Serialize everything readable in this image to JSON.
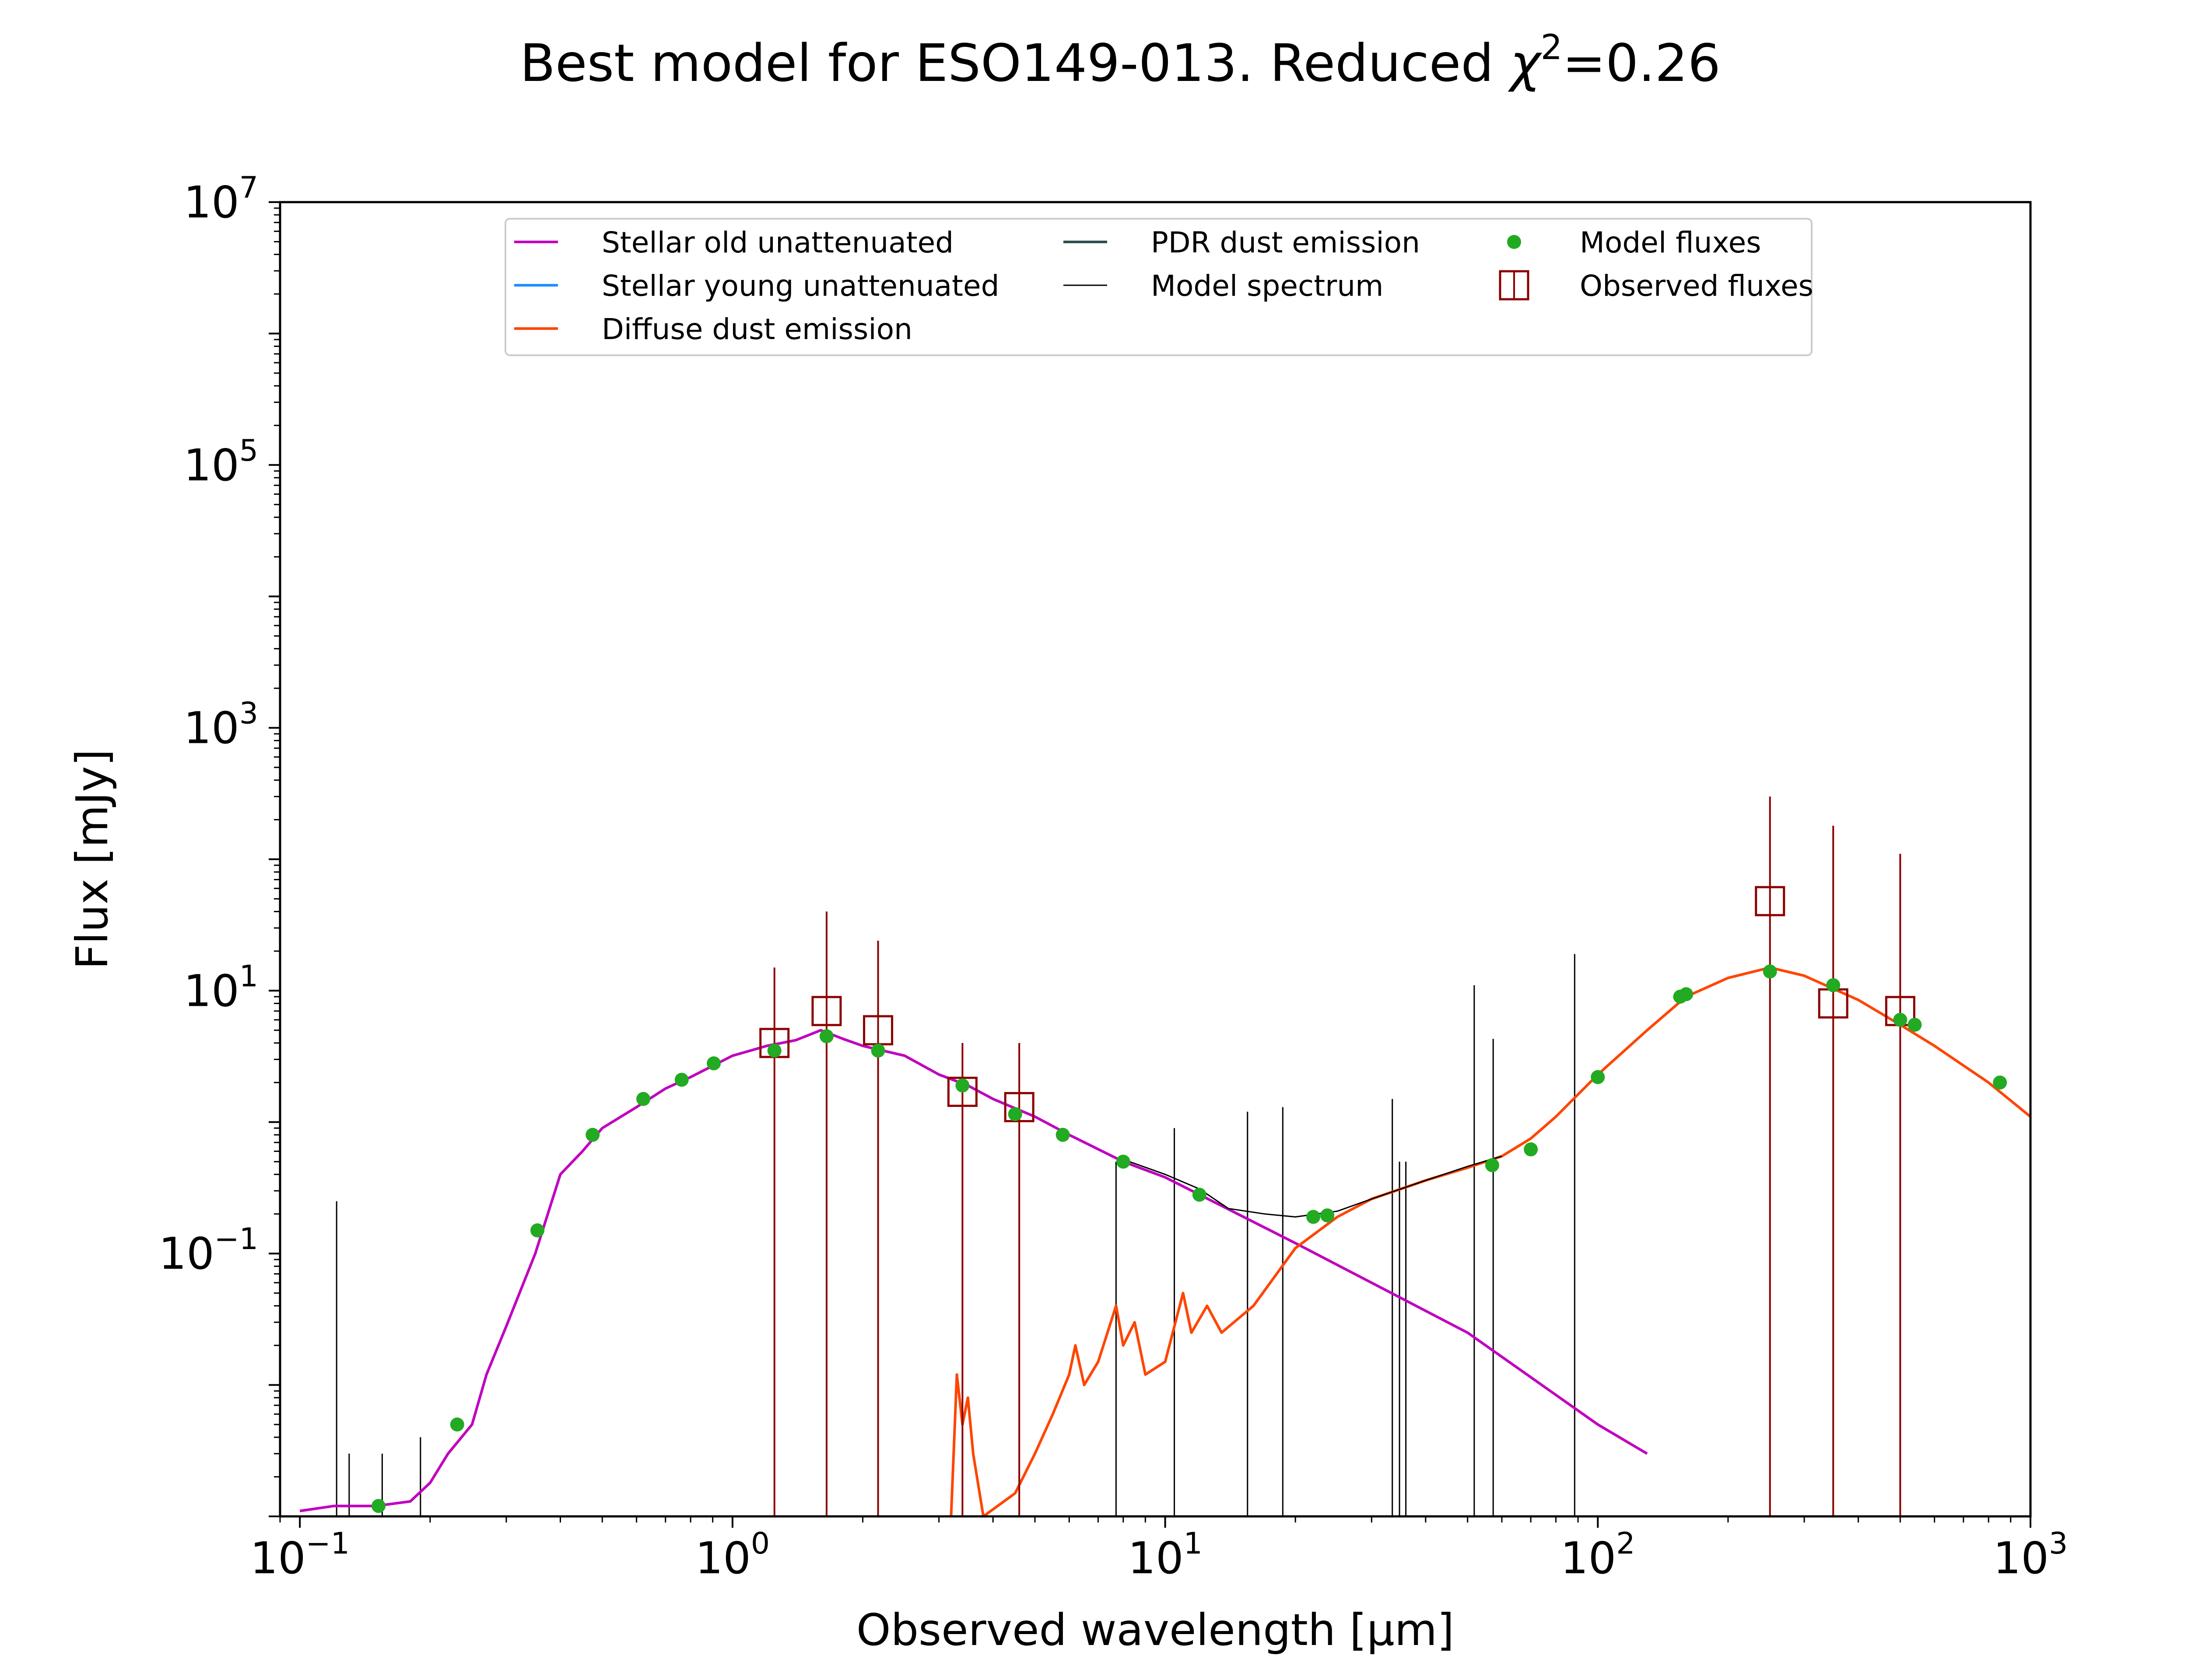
{
  "chart_data": {
    "type": "line",
    "title_main": "Best model for ESO149-013. Reduced ",
    "title_chi": "χ",
    "title_exp": "2",
    "title_tail": "=0.26",
    "xlabel": "Observed wavelength [μm]",
    "ylabel": "Flux [mJy]",
    "x_scale": "log",
    "y_scale": "log",
    "xlim": [
      0.09,
      1000
    ],
    "ylim": [
      0.001,
      10000000
    ],
    "x_ticks": [
      {
        "value": 0.1,
        "base": "10",
        "exp": "−1"
      },
      {
        "value": 1,
        "base": "10",
        "exp": "0"
      },
      {
        "value": 10,
        "base": "10",
        "exp": "1"
      },
      {
        "value": 100,
        "base": "10",
        "exp": "2"
      },
      {
        "value": 1000,
        "base": "10",
        "exp": "3"
      }
    ],
    "y_ticks": [
      {
        "value": 0.1,
        "base": "10",
        "exp": "−1"
      },
      {
        "value": 10,
        "base": "10",
        "exp": "1"
      },
      {
        "value": 1000,
        "base": "10",
        "exp": "3"
      },
      {
        "value": 100000,
        "base": "10",
        "exp": "5"
      },
      {
        "value": 10000000,
        "base": "10",
        "exp": "7"
      }
    ],
    "grid": false,
    "legend_position": "top-center",
    "legend": [
      {
        "label": "Stellar old unattenuated",
        "kind": "line",
        "color": "#BF00BF",
        "width": 3
      },
      {
        "label": "Stellar young unattenuated",
        "kind": "line",
        "color": "#1E90FF",
        "width": 3
      },
      {
        "label": "Diffuse dust emission",
        "kind": "line",
        "color": "#FF4500",
        "width": 3
      },
      {
        "label": "PDR dust emission",
        "kind": "line",
        "color": "#2F4F4F",
        "width": 3
      },
      {
        "label": "Model spectrum",
        "kind": "line",
        "color": "#000000",
        "width": 1.5
      },
      {
        "label": "Model fluxes",
        "kind": "dot",
        "color": "#22AA22"
      },
      {
        "label": "Observed fluxes",
        "kind": "square",
        "color": "#8B0000"
      }
    ],
    "series": [
      {
        "name": "Stellar old unattenuated",
        "color": "#BF00BF",
        "points": [
          [
            0.1,
            0.0011
          ],
          [
            0.12,
            0.0012
          ],
          [
            0.15,
            0.0012
          ],
          [
            0.18,
            0.0013
          ],
          [
            0.2,
            0.0018
          ],
          [
            0.22,
            0.003
          ],
          [
            0.25,
            0.005
          ],
          [
            0.27,
            0.012
          ],
          [
            0.3,
            0.028
          ],
          [
            0.35,
            0.1
          ],
          [
            0.4,
            0.4
          ],
          [
            0.45,
            0.6
          ],
          [
            0.5,
            0.9
          ],
          [
            0.6,
            1.3
          ],
          [
            0.7,
            1.8
          ],
          [
            0.8,
            2.2
          ],
          [
            1.0,
            3.2
          ],
          [
            1.2,
            3.8
          ],
          [
            1.4,
            4.2
          ],
          [
            1.6,
            5.0
          ],
          [
            1.8,
            4.3
          ],
          [
            2.0,
            3.8
          ],
          [
            2.5,
            3.2
          ],
          [
            3.0,
            2.3
          ],
          [
            3.5,
            1.9
          ],
          [
            4.0,
            1.5
          ],
          [
            5.0,
            1.1
          ],
          [
            6.0,
            0.8
          ],
          [
            8.0,
            0.5
          ],
          [
            10.0,
            0.38
          ],
          [
            20.0,
            0.12
          ],
          [
            50.0,
            0.025
          ],
          [
            100.0,
            0.005
          ],
          [
            130.0,
            0.003
          ]
        ]
      },
      {
        "name": "Diffuse dust emission",
        "color": "#FF4500",
        "points": [
          [
            3.2,
            0.001
          ],
          [
            3.3,
            0.012
          ],
          [
            3.4,
            0.005
          ],
          [
            3.5,
            0.008
          ],
          [
            3.6,
            0.003
          ],
          [
            3.8,
            0.001
          ],
          [
            4.5,
            0.0015
          ],
          [
            5.0,
            0.003
          ],
          [
            5.5,
            0.006
          ],
          [
            6.0,
            0.012
          ],
          [
            6.2,
            0.02
          ],
          [
            6.5,
            0.01
          ],
          [
            7.0,
            0.015
          ],
          [
            7.7,
            0.04
          ],
          [
            8.0,
            0.02
          ],
          [
            8.5,
            0.03
          ],
          [
            9.0,
            0.012
          ],
          [
            10.0,
            0.015
          ],
          [
            11.0,
            0.05
          ],
          [
            11.5,
            0.025
          ],
          [
            12.5,
            0.04
          ],
          [
            13.5,
            0.025
          ],
          [
            16.0,
            0.04
          ],
          [
            20.0,
            0.11
          ],
          [
            25.0,
            0.19
          ],
          [
            30.0,
            0.26
          ],
          [
            40.0,
            0.36
          ],
          [
            50.0,
            0.45
          ],
          [
            60.0,
            0.55
          ],
          [
            70.0,
            0.75
          ],
          [
            80.0,
            1.1
          ],
          [
            100.0,
            2.3
          ],
          [
            130.0,
            5.0
          ],
          [
            160.0,
            9.0
          ],
          [
            200.0,
            12.5
          ],
          [
            250.0,
            15.0
          ],
          [
            300.0,
            13.0
          ],
          [
            400.0,
            8.5
          ],
          [
            500.0,
            5.5
          ],
          [
            600.0,
            3.8
          ],
          [
            800.0,
            2.0
          ],
          [
            1000.0,
            1.1
          ]
        ]
      },
      {
        "name": "Model spectrum",
        "color": "#000000",
        "points": [
          [
            8.0,
            0.52
          ],
          [
            10.0,
            0.4
          ],
          [
            12.0,
            0.31
          ],
          [
            14.0,
            0.22
          ],
          [
            17.0,
            0.2
          ],
          [
            20.0,
            0.19
          ],
          [
            25.0,
            0.21
          ],
          [
            30.0,
            0.26
          ],
          [
            40.0,
            0.36
          ],
          [
            50.0,
            0.46
          ],
          [
            60.0,
            0.55
          ]
        ]
      }
    ],
    "emission_lines": [
      {
        "x": 0.1216,
        "ymax": 0.25
      },
      {
        "x": 0.13,
        "ymax": 0.003
      },
      {
        "x": 0.155,
        "ymax": 0.003
      },
      {
        "x": 0.19,
        "ymax": 0.004
      },
      {
        "x": 7.7,
        "ymax": 0.5
      },
      {
        "x": 10.5,
        "ymax": 0.9
      },
      {
        "x": 15.5,
        "ymax": 1.2
      },
      {
        "x": 18.7,
        "ymax": 1.3
      },
      {
        "x": 33.5,
        "ymax": 1.5
      },
      {
        "x": 34.8,
        "ymax": 0.5
      },
      {
        "x": 36.0,
        "ymax": 0.5
      },
      {
        "x": 51.8,
        "ymax": 11.0
      },
      {
        "x": 57.3,
        "ymax": 4.3
      },
      {
        "x": 88.4,
        "ymax": 19.0
      }
    ],
    "model_fluxes": [
      [
        0.152,
        0.0012
      ],
      [
        0.231,
        0.005
      ],
      [
        0.354,
        0.15
      ],
      [
        0.475,
        0.8
      ],
      [
        0.622,
        1.5
      ],
      [
        0.763,
        2.1
      ],
      [
        0.905,
        2.8
      ],
      [
        1.25,
        3.5
      ],
      [
        1.65,
        4.5
      ],
      [
        2.17,
        3.5
      ],
      [
        3.4,
        1.9
      ],
      [
        4.5,
        1.15
      ],
      [
        5.8,
        0.8
      ],
      [
        8.0,
        0.5
      ],
      [
        12.0,
        0.28
      ],
      [
        22.0,
        0.19
      ],
      [
        23.7,
        0.195
      ],
      [
        57.0,
        0.47
      ],
      [
        70.0,
        0.62
      ],
      [
        100.0,
        2.2
      ],
      [
        155.0,
        9.0
      ],
      [
        160.0,
        9.4
      ],
      [
        250.0,
        14.0
      ],
      [
        350.0,
        11.0
      ],
      [
        500.0,
        6.0
      ],
      [
        540.0,
        5.5
      ],
      [
        850.0,
        2.0
      ]
    ],
    "observed_fluxes": [
      {
        "x": 1.25,
        "y": 4.0,
        "err_low": 0.001,
        "err_high": 15.0
      },
      {
        "x": 1.65,
        "y": 7.0,
        "err_low": 0.001,
        "err_high": 40.0
      },
      {
        "x": 2.17,
        "y": 5.0,
        "err_low": 0.001,
        "err_high": 24.0
      },
      {
        "x": 3.4,
        "y": 1.7,
        "err_low": 0.001,
        "err_high": 4.0
      },
      {
        "x": 4.6,
        "y": 1.3,
        "err_low": 0.001,
        "err_high": 4.0
      },
      {
        "x": 250.0,
        "y": 48.0,
        "err_low": 0.001,
        "err_high": 300.0
      },
      {
        "x": 350.0,
        "y": 8.0,
        "err_low": 0.001,
        "err_high": 180.0
      },
      {
        "x": 500.0,
        "y": 7.0,
        "err_low": 0.001,
        "err_high": 110.0
      }
    ]
  }
}
